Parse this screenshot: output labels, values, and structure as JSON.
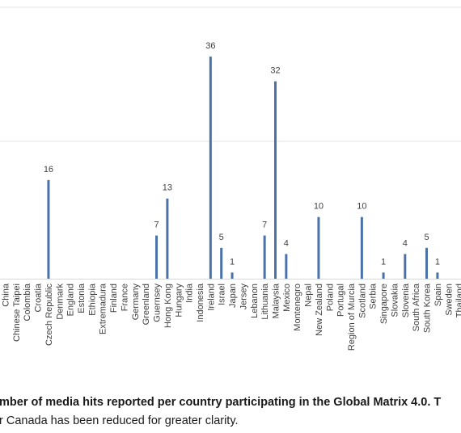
{
  "chart_data": {
    "type": "bar",
    "categories": [
      "China",
      "Chinese Taipei",
      "Colombia",
      "Croatia",
      "Czech Republic",
      "Denmark",
      "England",
      "Estonia",
      "Ethiopia",
      "Extremadura",
      "Finland",
      "France",
      "Germany",
      "Greenland",
      "Guernsey",
      "Hong Kong",
      "Hungary",
      "India",
      "Indonesia",
      "Ireland",
      "Israel",
      "Japan",
      "Jersey",
      "Lebanon",
      "Lithuania",
      "Malaysia",
      "Mexico",
      "Montenegro",
      "Nepal",
      "New Zealand",
      "Poland",
      "Portugal",
      "Region of Murcia",
      "Scotland",
      "Serbia",
      "Singapore",
      "Slovakia",
      "Slovenia",
      "South Africa",
      "South Korea",
      "Spain",
      "Sweden",
      "Thailand"
    ],
    "values": [
      0,
      0,
      0,
      0,
      16,
      0,
      0,
      0,
      0,
      0,
      0,
      0,
      0,
      0,
      7,
      13,
      0,
      0,
      0,
      36,
      5,
      1,
      0,
      0,
      7,
      32,
      4,
      0,
      0,
      10,
      0,
      0,
      0,
      10,
      0,
      1,
      0,
      4,
      0,
      5,
      1,
      0,
      0
    ],
    "data_labels": [
      "",
      "",
      "",
      "",
      "16",
      "",
      "",
      "",
      "",
      "",
      "",
      "",
      "",
      "",
      "7",
      "13",
      "",
      "",
      "",
      "36",
      "5",
      "1",
      "",
      "",
      "7",
      "32",
      "4",
      "",
      "",
      "10",
      "",
      "",
      "",
      "10",
      "",
      "1",
      "",
      "4",
      "",
      "5",
      "1",
      "",
      ""
    ],
    "ylim": [
      0,
      44
    ],
    "bar_color": "#4a72a8",
    "grid": "horizontal",
    "legend": "none"
  },
  "caption": {
    "line1_bold": "mber of media hits reported per country participating in the Global Matrix 4.0. T",
    "line2": "r Canada has been reduced for greater clarity."
  }
}
